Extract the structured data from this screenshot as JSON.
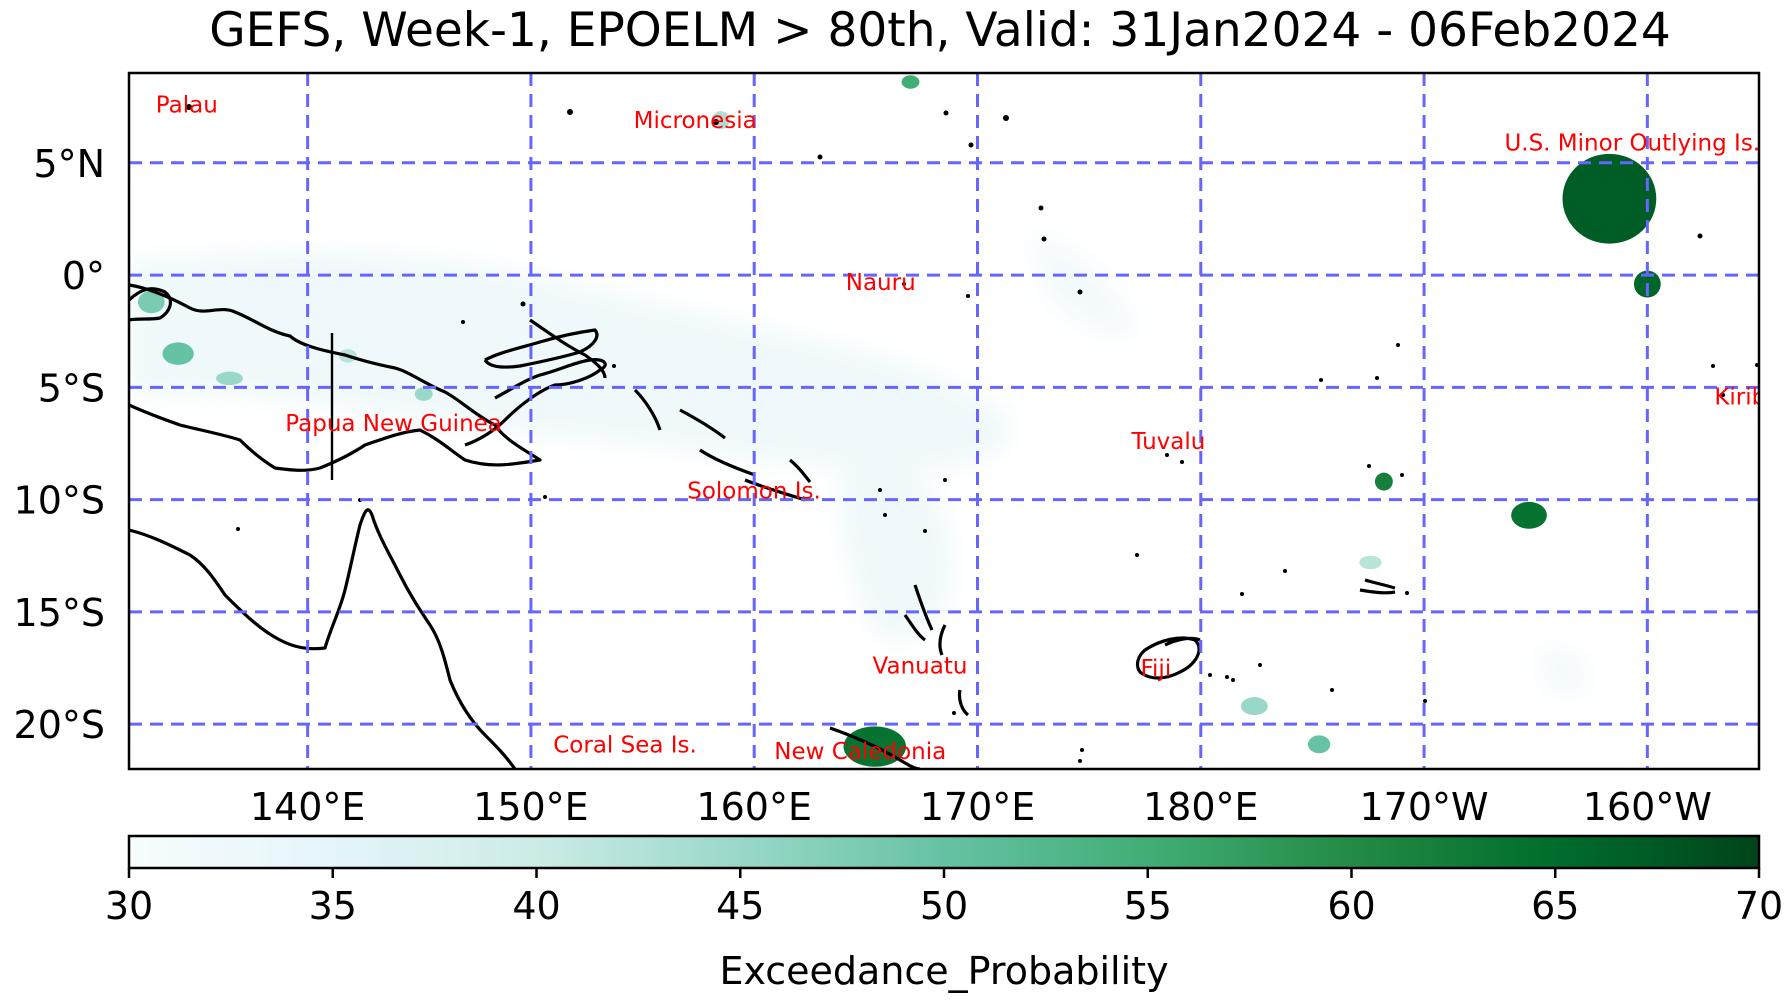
{
  "title": "GEFS, Week-1, EPOELM > 80th, Valid: 31Jan2024 - 06Feb2024",
  "map": {
    "lon_range": [
      132,
      205
    ],
    "lat_range": [
      -22,
      9
    ],
    "lat_ticks": [
      {
        "value": 5,
        "label": "5°N"
      },
      {
        "value": 0,
        "label": "0°"
      },
      {
        "value": -5,
        "label": "5°S"
      },
      {
        "value": -10,
        "label": "10°S"
      },
      {
        "value": -15,
        "label": "15°S"
      },
      {
        "value": -20,
        "label": "20°S"
      }
    ],
    "lon_ticks": [
      {
        "value": 140,
        "label": "140°E"
      },
      {
        "value": 150,
        "label": "150°E"
      },
      {
        "value": 160,
        "label": "160°E"
      },
      {
        "value": 170,
        "label": "170°E"
      },
      {
        "value": 180,
        "label": "180°E"
      },
      {
        "value": 190,
        "label": "170°W"
      },
      {
        "value": 200,
        "label": "160°W"
      }
    ],
    "gridline_color": "#6666ff",
    "coastline_color": "#000000",
    "place_labels": [
      {
        "name": "Palau",
        "lon": 133.2,
        "lat": 7.6
      },
      {
        "name": "Micronesia",
        "lon": 154.6,
        "lat": 6.9
      },
      {
        "name": "U.S. Minor Outlying Is.",
        "lon": 193.6,
        "lat": 5.9
      },
      {
        "name": "Nauru",
        "lon": 164.1,
        "lat": -0.3
      },
      {
        "name": "Kiribati",
        "lon": 203.0,
        "lat": -5.4
      },
      {
        "name": "Papua New Guinea",
        "lon": 139.0,
        "lat": -6.6
      },
      {
        "name": "Tuvalu",
        "lon": 176.9,
        "lat": -7.4
      },
      {
        "name": "Solomon Is.",
        "lon": 157.0,
        "lat": -9.6
      },
      {
        "name": "Vanuatu",
        "lon": 165.3,
        "lat": -17.4
      },
      {
        "name": "Fiji",
        "lon": 177.3,
        "lat": -17.5
      },
      {
        "name": "Coral Sea Is.",
        "lon": 151.0,
        "lat": -20.9
      },
      {
        "name": "New Caledonia",
        "lon": 160.9,
        "lat": -21.2
      }
    ],
    "probability_regions": [
      {
        "lon": 198.3,
        "lat": 3.4,
        "rlon": 2.1,
        "rlat": 2.0,
        "value": 67
      },
      {
        "lon": 200.0,
        "lat": -0.4,
        "rlon": 0.6,
        "rlat": 0.6,
        "value": 66
      },
      {
        "lon": 194.7,
        "lat": -10.7,
        "rlon": 0.8,
        "rlat": 0.6,
        "value": 64
      },
      {
        "lon": 188.2,
        "lat": -9.2,
        "rlon": 0.4,
        "rlat": 0.4,
        "value": 62
      },
      {
        "lon": 165.4,
        "lat": -21.0,
        "rlon": 1.4,
        "rlat": 0.9,
        "value": 64
      },
      {
        "lon": 167.0,
        "lat": 8.6,
        "rlon": 0.4,
        "rlat": 0.3,
        "value": 55
      },
      {
        "lon": 133.0,
        "lat": -1.2,
        "rlon": 0.6,
        "rlat": 0.5,
        "value": 48
      },
      {
        "lon": 134.2,
        "lat": -3.5,
        "rlon": 0.7,
        "rlat": 0.5,
        "value": 50
      },
      {
        "lon": 136.5,
        "lat": -4.6,
        "rlon": 0.6,
        "rlat": 0.3,
        "value": 45
      },
      {
        "lon": 145.2,
        "lat": -5.3,
        "rlon": 0.4,
        "rlat": 0.3,
        "value": 45
      },
      {
        "lon": 158.5,
        "lat": 6.9,
        "rlon": 0.4,
        "rlat": 0.4,
        "value": 43
      },
      {
        "lon": 182.4,
        "lat": -19.2,
        "rlon": 0.6,
        "rlat": 0.4,
        "value": 45
      },
      {
        "lon": 187.6,
        "lat": -12.8,
        "rlon": 0.5,
        "rlat": 0.3,
        "value": 42
      },
      {
        "lon": 185.3,
        "lat": -20.9,
        "rlon": 0.5,
        "rlat": 0.4,
        "value": 50
      },
      {
        "lon": 141.8,
        "lat": -3.6,
        "rlon": 0.4,
        "rlat": 0.3,
        "value": 42
      }
    ]
  },
  "colorbar": {
    "label": "Exceedance_Probability",
    "min": 30,
    "max": 70,
    "ticks": [
      30,
      35,
      40,
      45,
      50,
      55,
      60,
      65,
      70
    ],
    "colors": [
      "#f7fcfd",
      "#e5f5f9",
      "#ccece6",
      "#99d8c9",
      "#66c2a4",
      "#41ae76",
      "#238b45",
      "#006d2c",
      "#00441b"
    ]
  }
}
